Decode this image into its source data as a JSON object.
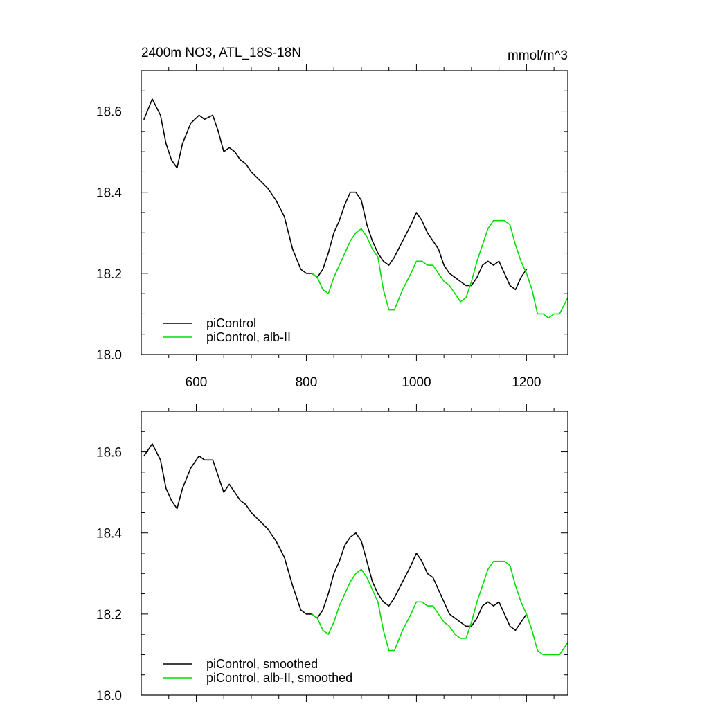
{
  "colors": {
    "control": "#000000",
    "alb": "#00dd00",
    "axis": "#000000"
  },
  "chart_data": [
    {
      "type": "line",
      "title": "2400m NO3, ATL_18S-18N",
      "units": "mmol/m^3",
      "xlim": [
        500,
        1275
      ],
      "ylim": [
        18.0,
        18.7
      ],
      "xticks": [
        600,
        800,
        1000,
        1200
      ],
      "yticks": [
        18.0,
        18.2,
        18.4,
        18.6
      ],
      "legend": "bottom-left",
      "series": [
        {
          "name": "piControl",
          "color": "#000000",
          "x": [
            505,
            520,
            535,
            545,
            555,
            565,
            575,
            590,
            605,
            615,
            630,
            640,
            650,
            660,
            670,
            680,
            690,
            700,
            715,
            730,
            745,
            760,
            775,
            790,
            800,
            810,
            820,
            830,
            840,
            850,
            860,
            870,
            880,
            890,
            900,
            910,
            920,
            930,
            940,
            950,
            960,
            975,
            990,
            1000,
            1010,
            1020,
            1030,
            1040,
            1050,
            1060,
            1070,
            1080,
            1090,
            1100,
            1110,
            1120,
            1130,
            1140,
            1150,
            1160,
            1170,
            1180,
            1190,
            1200
          ],
          "y": [
            18.58,
            18.63,
            18.59,
            18.52,
            18.48,
            18.46,
            18.52,
            18.57,
            18.59,
            18.58,
            18.59,
            18.55,
            18.5,
            18.51,
            18.5,
            18.48,
            18.47,
            18.45,
            18.43,
            18.41,
            18.38,
            18.34,
            18.26,
            18.21,
            18.2,
            18.2,
            18.19,
            18.21,
            18.25,
            18.3,
            18.33,
            18.37,
            18.4,
            18.4,
            18.38,
            18.32,
            18.28,
            18.25,
            18.23,
            18.22,
            18.24,
            18.28,
            18.32,
            18.35,
            18.33,
            18.3,
            18.28,
            18.26,
            18.22,
            18.2,
            18.19,
            18.18,
            18.17,
            18.17,
            18.19,
            18.22,
            18.23,
            18.22,
            18.23,
            18.2,
            18.17,
            18.16,
            18.19,
            18.21
          ]
        },
        {
          "name": "piControl, alb-II",
          "color": "#00dd00",
          "x": [
            810,
            820,
            830,
            840,
            850,
            860,
            870,
            880,
            890,
            900,
            910,
            920,
            930,
            940,
            950,
            960,
            975,
            990,
            1000,
            1010,
            1020,
            1030,
            1040,
            1050,
            1060,
            1070,
            1080,
            1090,
            1100,
            1110,
            1120,
            1130,
            1140,
            1150,
            1160,
            1170,
            1180,
            1190,
            1200,
            1210,
            1220,
            1230,
            1240,
            1250,
            1260,
            1275
          ],
          "y": [
            18.2,
            18.19,
            18.16,
            18.15,
            18.19,
            18.22,
            18.25,
            18.28,
            18.3,
            18.31,
            18.29,
            18.26,
            18.24,
            18.16,
            18.11,
            18.11,
            18.16,
            18.2,
            18.23,
            18.23,
            18.22,
            18.22,
            18.2,
            18.18,
            18.17,
            18.15,
            18.13,
            18.14,
            18.18,
            18.23,
            18.27,
            18.31,
            18.33,
            18.33,
            18.33,
            18.32,
            18.27,
            18.23,
            18.2,
            18.16,
            18.1,
            18.1,
            18.09,
            18.1,
            18.1,
            18.14
          ]
        }
      ]
    },
    {
      "type": "line",
      "title": "",
      "xlim": [
        500,
        1275
      ],
      "ylim": [
        18.0,
        18.7
      ],
      "yticks": [
        18.0,
        18.2,
        18.4,
        18.6
      ],
      "legend": "bottom-left",
      "series": [
        {
          "name": "piControl, smoothed",
          "color": "#000000",
          "x": [
            505,
            520,
            535,
            545,
            555,
            565,
            575,
            590,
            605,
            615,
            630,
            640,
            650,
            660,
            670,
            680,
            690,
            700,
            715,
            730,
            745,
            760,
            775,
            790,
            800,
            810,
            820,
            830,
            840,
            850,
            860,
            870,
            880,
            890,
            900,
            910,
            920,
            930,
            940,
            950,
            960,
            975,
            990,
            1000,
            1010,
            1020,
            1030,
            1040,
            1050,
            1060,
            1070,
            1080,
            1090,
            1100,
            1110,
            1120,
            1130,
            1140,
            1150,
            1160,
            1170,
            1180,
            1190,
            1200
          ],
          "y": [
            18.59,
            18.62,
            18.58,
            18.51,
            18.48,
            18.46,
            18.51,
            18.56,
            18.59,
            18.58,
            18.58,
            18.54,
            18.5,
            18.52,
            18.5,
            18.48,
            18.47,
            18.45,
            18.43,
            18.41,
            18.38,
            18.34,
            18.27,
            18.21,
            18.2,
            18.2,
            18.19,
            18.21,
            18.25,
            18.3,
            18.33,
            18.37,
            18.39,
            18.4,
            18.38,
            18.33,
            18.28,
            18.25,
            18.23,
            18.22,
            18.24,
            18.28,
            18.32,
            18.35,
            18.33,
            18.3,
            18.29,
            18.26,
            18.23,
            18.2,
            18.19,
            18.18,
            18.17,
            18.17,
            18.19,
            18.22,
            18.23,
            18.22,
            18.23,
            18.2,
            18.17,
            18.16,
            18.18,
            18.2
          ]
        },
        {
          "name": "piControl, alb-II, smoothed",
          "color": "#00dd00",
          "x": [
            810,
            820,
            830,
            840,
            850,
            860,
            870,
            880,
            890,
            900,
            910,
            920,
            930,
            940,
            950,
            960,
            975,
            990,
            1000,
            1010,
            1020,
            1030,
            1040,
            1050,
            1060,
            1070,
            1080,
            1090,
            1100,
            1110,
            1120,
            1130,
            1140,
            1150,
            1160,
            1170,
            1180,
            1190,
            1200,
            1210,
            1220,
            1230,
            1240,
            1250,
            1260,
            1275
          ],
          "y": [
            18.2,
            18.19,
            18.16,
            18.15,
            18.18,
            18.22,
            18.25,
            18.28,
            18.3,
            18.31,
            18.29,
            18.26,
            18.23,
            18.16,
            18.11,
            18.11,
            18.16,
            18.2,
            18.23,
            18.23,
            18.22,
            18.22,
            18.2,
            18.18,
            18.17,
            18.15,
            18.14,
            18.14,
            18.18,
            18.23,
            18.27,
            18.31,
            18.33,
            18.33,
            18.33,
            18.32,
            18.27,
            18.23,
            18.2,
            18.16,
            18.11,
            18.1,
            18.1,
            18.1,
            18.1,
            18.13
          ]
        }
      ]
    }
  ]
}
